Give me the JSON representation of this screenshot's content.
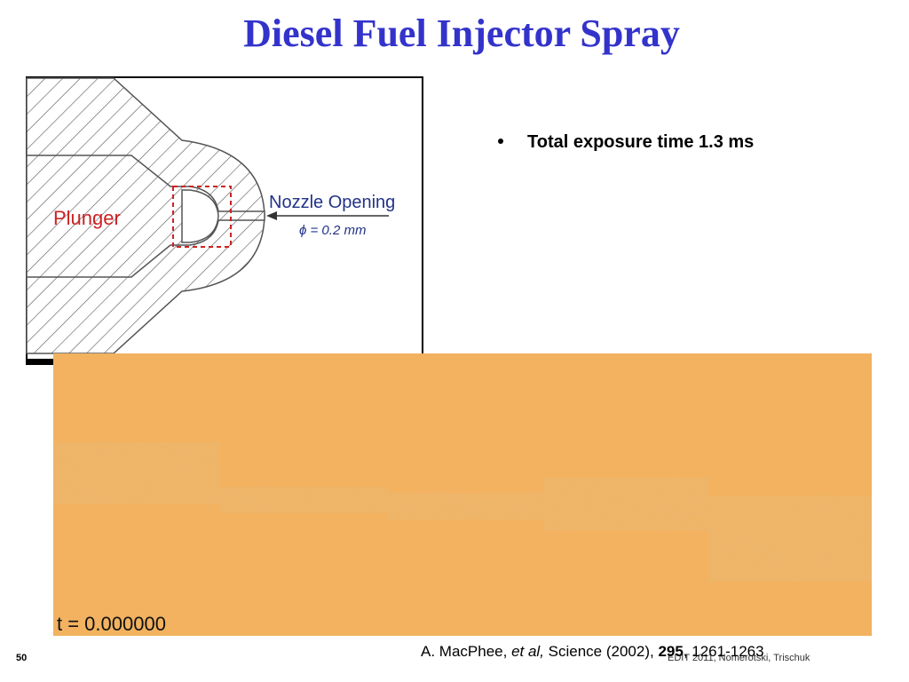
{
  "slide": {
    "title": "Diesel Fuel Injector Spray",
    "bullets": [
      "Total exposure time 1.3 ms"
    ],
    "diagram": {
      "plunger": "Plunger",
      "nozzle": "Nozzle Opening",
      "diameter": "ϕ = 0.2 mm"
    },
    "image_label": "t = 0.000000",
    "citation": {
      "authors": "A. MacPhee, ",
      "etal": "et al,",
      "journal": " Science (2002), ",
      "volume": "295",
      "pages": ", 1261-1263"
    },
    "footer": "EDIT 2011, Nomerotski, Trischuk",
    "page_number": "50"
  }
}
